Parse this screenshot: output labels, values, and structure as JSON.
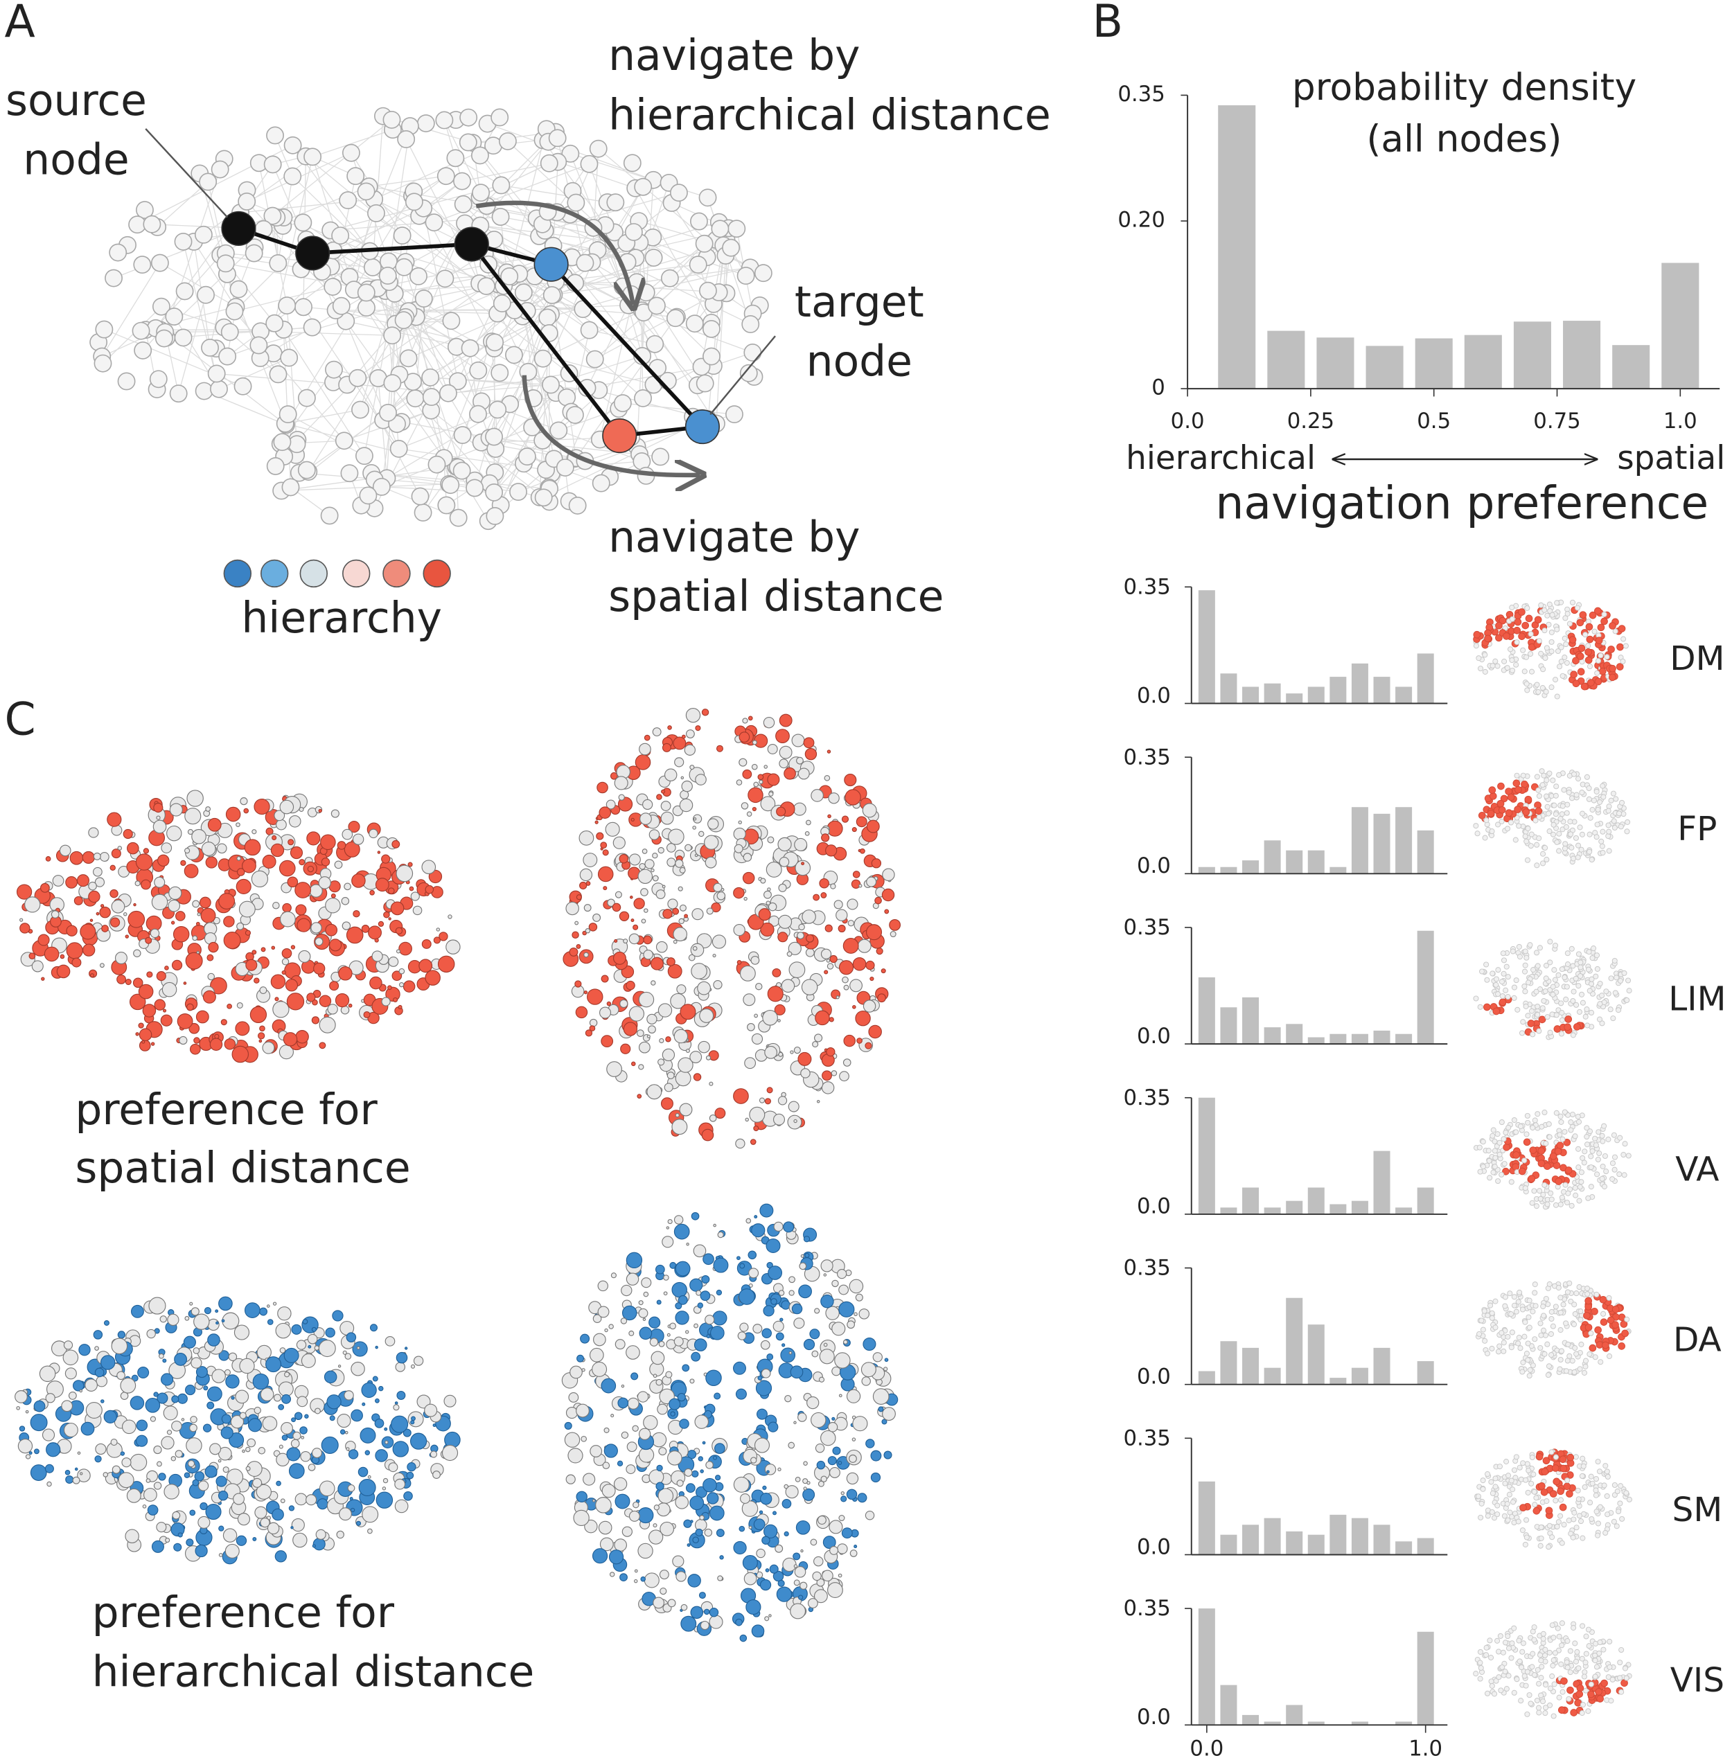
{
  "panel_a": {
    "label": "A",
    "source_label": [
      "source",
      "node"
    ],
    "hierarchical_label": [
      "navigate by",
      "hierarchical distance"
    ],
    "target_label": [
      "target",
      "node"
    ],
    "spatial_label": [
      "navigate by",
      "spatial distance"
    ],
    "legend_title": "hierarchy"
  },
  "panel_b_label": "B",
  "panel_c": {
    "label": "C",
    "spatial_caption": [
      "preference for",
      "spatial distance"
    ],
    "hierarchical_caption": [
      "preference for",
      "hierarchical distance"
    ]
  },
  "chart_data": [
    {
      "type": "histogram",
      "title": "probability density",
      "subtitle": "(all nodes)",
      "xlabel": "navigation preference",
      "annotations": [
        "hierarchical",
        "spatial"
      ],
      "bins": [
        0.05,
        0.15,
        0.25,
        0.35,
        0.45,
        0.55,
        0.65,
        0.75,
        0.85,
        0.95,
        1.05
      ],
      "values": [
        0.338,
        0.069,
        0.061,
        0.051,
        0.06,
        0.064,
        0.08,
        0.081,
        0.052,
        0.15
      ],
      "color": "#bfbfbf",
      "xlim": [
        0,
        1.08
      ],
      "ylim": [
        0,
        0.35
      ],
      "xticks": [
        {
          "value": 0,
          "label": "0.0"
        },
        0.25,
        0.5,
        0.75,
        {
          "value": 1,
          "label": "1.0"
        }
      ],
      "yticks": [
        0,
        {
          "value": 0.2,
          "label": "0.20"
        },
        0.35
      ]
    },
    {
      "type": "histogram",
      "title": "DM",
      "bins": [
        -0.05,
        0.05,
        0.15,
        0.25,
        0.35,
        0.45,
        0.55,
        0.65,
        0.75,
        0.85,
        0.95,
        1.05
      ],
      "values": [
        0.34,
        0.09,
        0.05,
        0.06,
        0.03,
        0.05,
        0.08,
        0.12,
        0.08,
        0.05,
        0.15
      ],
      "color": "#bfbfbf",
      "xlim": [
        -0.07,
        1.1
      ],
      "ylim": [
        0,
        0.35
      ],
      "yticks": [
        {
          "value": 0,
          "label": "0.0"
        },
        0.35
      ]
    },
    {
      "type": "histogram",
      "title": "FP",
      "bins": [
        -0.05,
        0.05,
        0.15,
        0.25,
        0.35,
        0.45,
        0.55,
        0.65,
        0.75,
        0.85,
        0.95,
        1.05
      ],
      "values": [
        0.02,
        0.02,
        0.04,
        0.1,
        0.07,
        0.07,
        0.02,
        0.2,
        0.18,
        0.2,
        0.13
      ],
      "color": "#bfbfbf",
      "xlim": [
        -0.07,
        1.1
      ],
      "ylim": [
        0,
        0.35
      ],
      "yticks": [
        {
          "value": 0,
          "label": "0.0"
        },
        0.35
      ]
    },
    {
      "type": "histogram",
      "title": "LIM",
      "bins": [
        -0.05,
        0.05,
        0.15,
        0.25,
        0.35,
        0.45,
        0.55,
        0.65,
        0.75,
        0.85,
        0.95,
        1.05
      ],
      "values": [
        0.2,
        0.11,
        0.14,
        0.05,
        0.06,
        0.02,
        0.03,
        0.03,
        0.04,
        0.03,
        0.34
      ],
      "color": "#bfbfbf",
      "xlim": [
        -0.07,
        1.1
      ],
      "ylim": [
        0,
        0.35
      ],
      "yticks": [
        {
          "value": 0,
          "label": "0.0"
        },
        0.35
      ]
    },
    {
      "type": "histogram",
      "title": "VA",
      "bins": [
        -0.05,
        0.05,
        0.15,
        0.25,
        0.35,
        0.45,
        0.55,
        0.65,
        0.75,
        0.85,
        0.95,
        1.05
      ],
      "values": [
        0.35,
        0.02,
        0.08,
        0.02,
        0.04,
        0.08,
        0.03,
        0.04,
        0.19,
        0.02,
        0.08
      ],
      "color": "#bfbfbf",
      "xlim": [
        -0.07,
        1.1
      ],
      "ylim": [
        0,
        0.35
      ],
      "yticks": [
        {
          "value": 0,
          "label": "0.0"
        },
        0.35
      ]
    },
    {
      "type": "histogram",
      "title": "DA",
      "bins": [
        -0.05,
        0.05,
        0.15,
        0.25,
        0.35,
        0.45,
        0.55,
        0.65,
        0.75,
        0.85,
        0.95,
        1.05
      ],
      "values": [
        0.04,
        0.13,
        0.11,
        0.05,
        0.26,
        0.18,
        0.02,
        0.05,
        0.11,
        0,
        0.07
      ],
      "color": "#bfbfbf",
      "xlim": [
        -0.07,
        1.1
      ],
      "ylim": [
        0,
        0.35
      ],
      "yticks": [
        {
          "value": 0,
          "label": "0.0"
        },
        0.35
      ]
    },
    {
      "type": "histogram",
      "title": "SM",
      "bins": [
        -0.05,
        0.05,
        0.15,
        0.25,
        0.35,
        0.45,
        0.55,
        0.65,
        0.75,
        0.85,
        0.95,
        1.05
      ],
      "values": [
        0.22,
        0.06,
        0.09,
        0.11,
        0.07,
        0.06,
        0.12,
        0.11,
        0.09,
        0.04,
        0.05
      ],
      "color": "#bfbfbf",
      "xlim": [
        -0.07,
        1.1
      ],
      "ylim": [
        0,
        0.35
      ],
      "yticks": [
        {
          "value": 0,
          "label": "0.0"
        },
        0.35
      ]
    },
    {
      "type": "histogram",
      "title": "VIS",
      "bins": [
        -0.05,
        0.05,
        0.15,
        0.25,
        0.35,
        0.45,
        0.55,
        0.65,
        0.75,
        0.85,
        0.95,
        1.05
      ],
      "values": [
        0.35,
        0.12,
        0.03,
        0.01,
        0.06,
        0.01,
        0,
        0.01,
        0,
        0.01,
        0.28
      ],
      "color": "#bfbfbf",
      "xlim": [
        -0.07,
        1.1
      ],
      "ylim": [
        0,
        0.35
      ],
      "yticks": [
        {
          "value": 0,
          "label": "0.0"
        },
        0.35
      ],
      "xticks": [
        {
          "value": 0,
          "label": "0.0"
        },
        {
          "value": 1,
          "label": "1.0"
        }
      ]
    }
  ]
}
